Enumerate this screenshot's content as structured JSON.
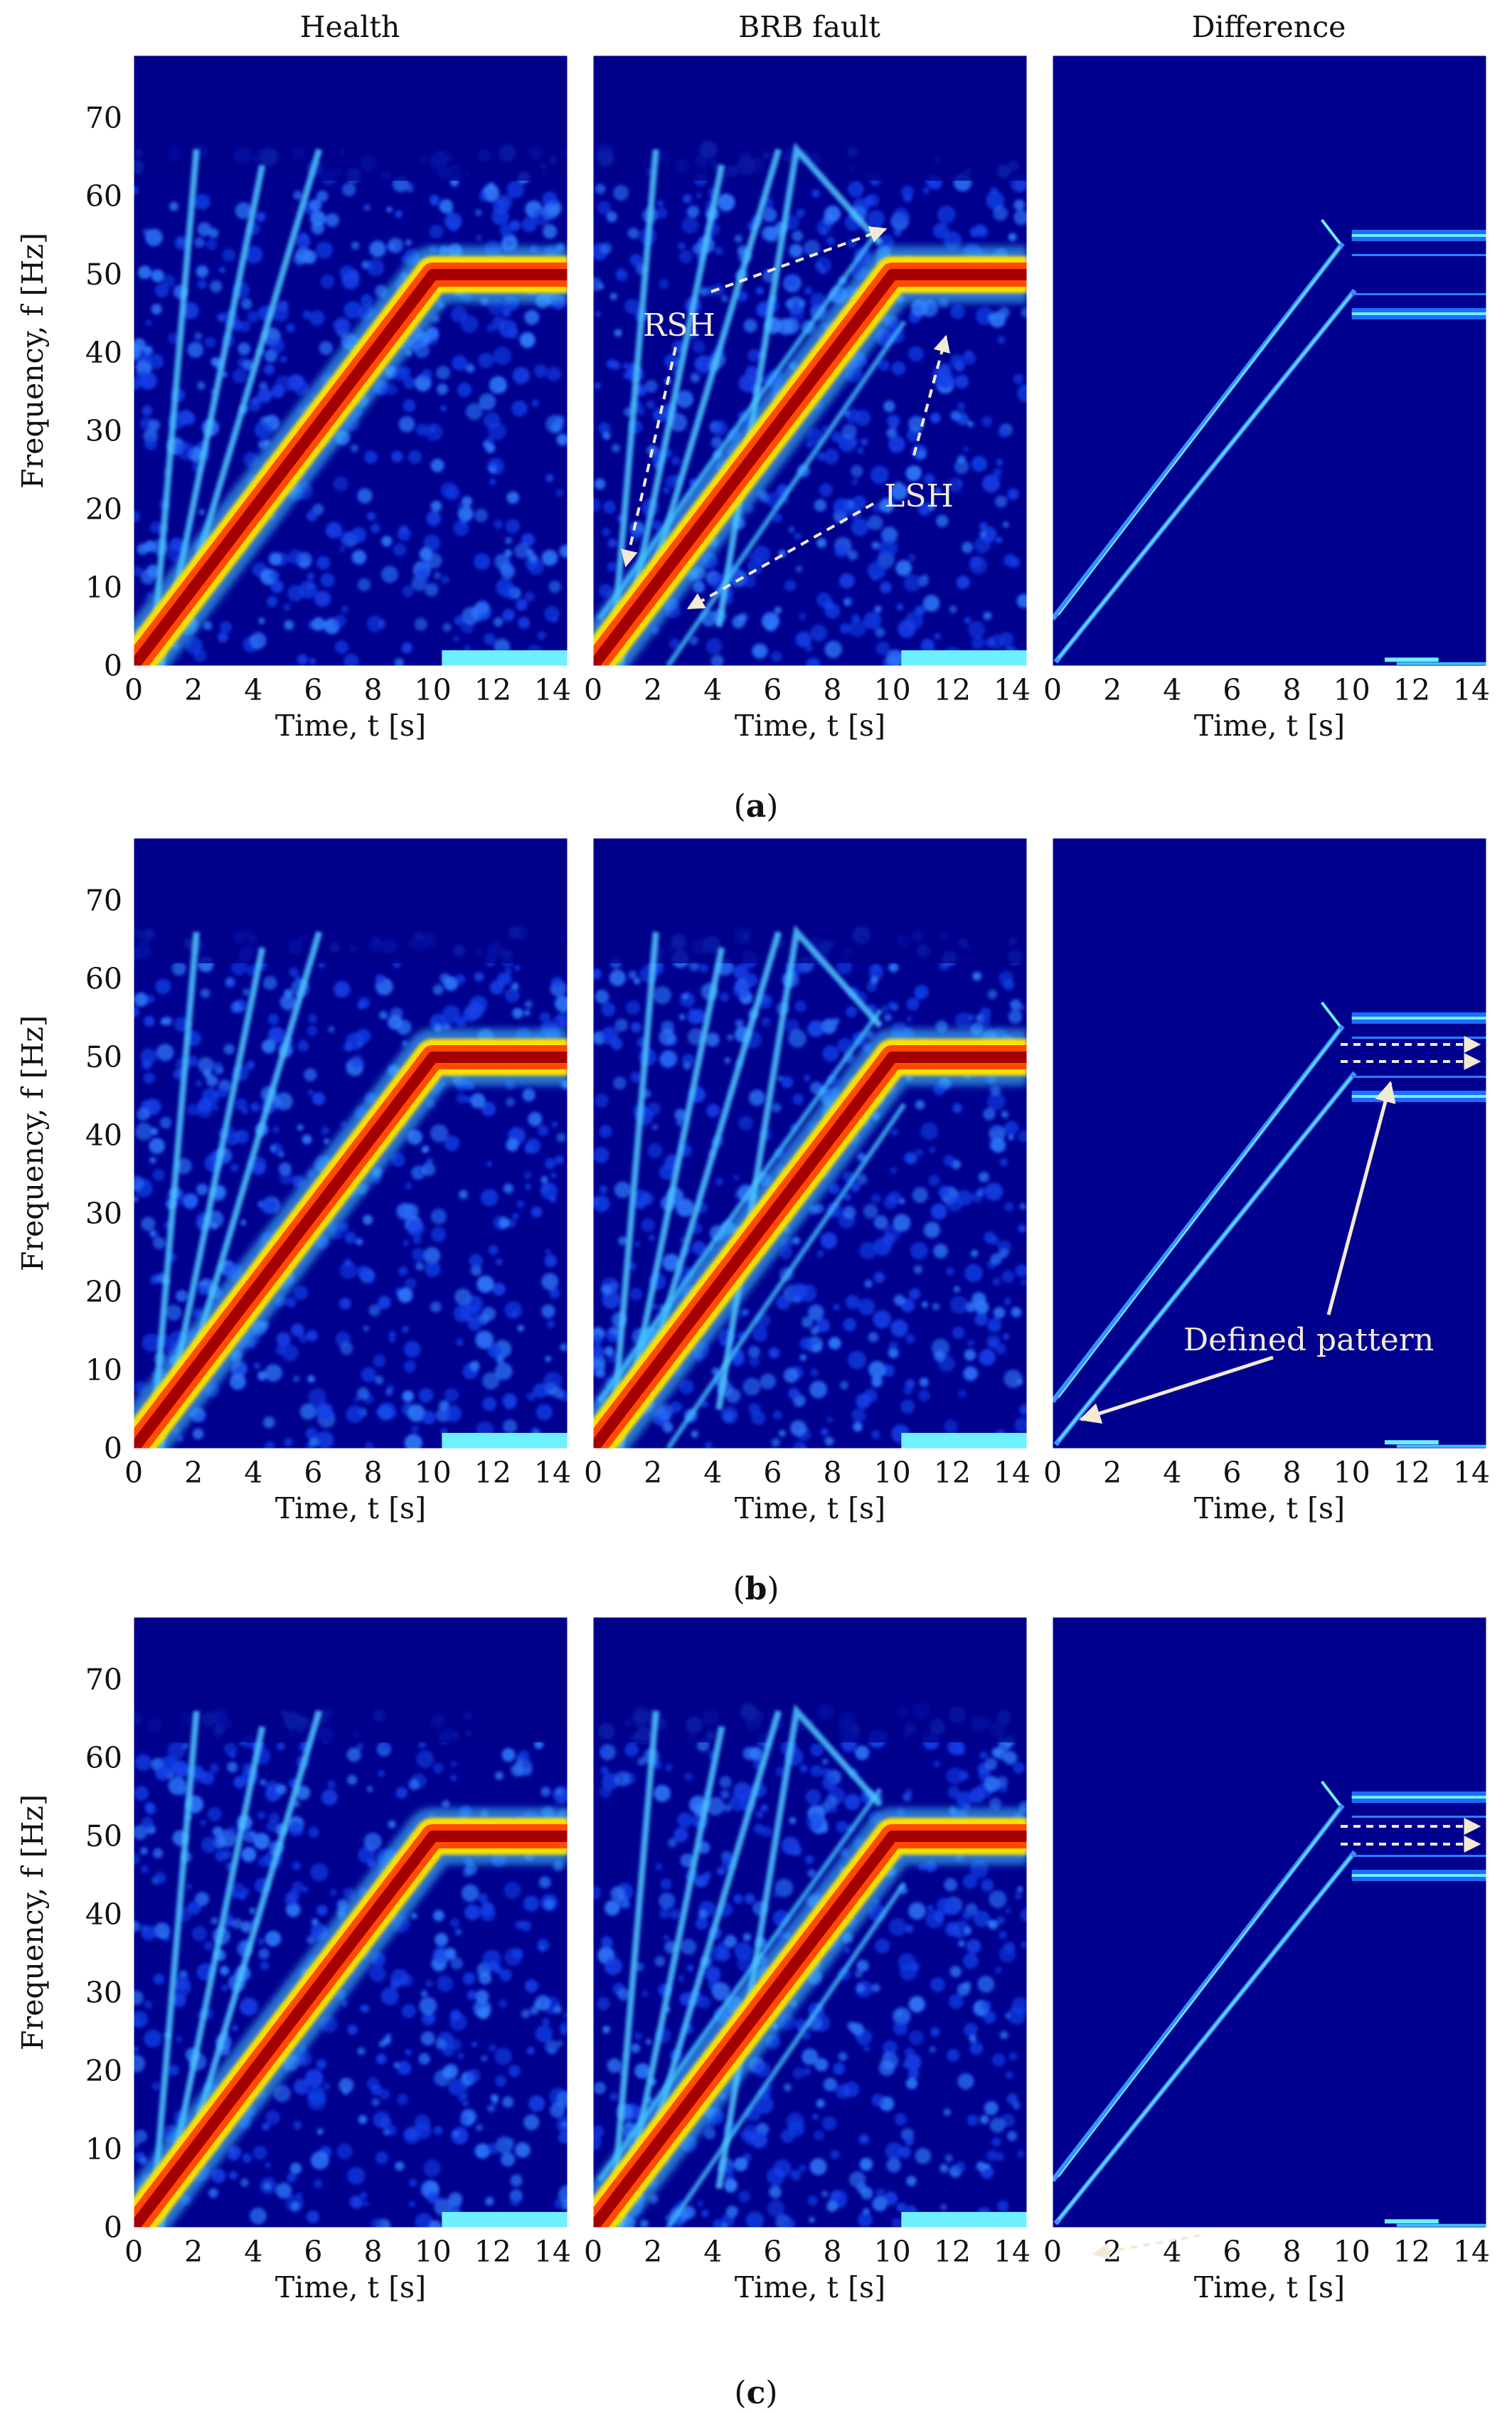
{
  "figure": {
    "column_titles": [
      "Health",
      "BRB fault",
      "Difference"
    ],
    "row_captions": [
      {
        "open": "(",
        "letter": "a",
        "close": ")"
      },
      {
        "open": "(",
        "letter": "b",
        "close": ")"
      },
      {
        "open": "(",
        "letter": "c",
        "close": ")"
      }
    ]
  },
  "colors": {
    "background_low": "#00008f",
    "colormap": [
      "#00008f",
      "#0022d8",
      "#2a6cf0",
      "#42c0ff",
      "#6ef0ff",
      "#ffe000",
      "#ff5a00",
      "#c00000",
      "#7a0000"
    ],
    "annotation": "#f3ead6"
  },
  "chart_data": [
    {
      "type": "heatmap",
      "row": "a",
      "title": "Health",
      "xlabel": "Time, t [s]",
      "ylabel": "Frequency, f [Hz]",
      "xlim": [
        0,
        14.5
      ],
      "ylim": [
        0,
        78
      ],
      "xticks": [
        0,
        2,
        4,
        6,
        8,
        10,
        12,
        14
      ],
      "yticks": [
        0,
        10,
        20,
        30,
        40,
        50,
        60,
        70
      ],
      "fundamental": [
        [
          0,
          0
        ],
        [
          10,
          50
        ],
        [
          14.5,
          50
        ]
      ],
      "variant": "health"
    },
    {
      "type": "heatmap",
      "row": "a",
      "title": "BRB fault",
      "xlabel": "Time, t [s]",
      "ylabel": "",
      "xlim": [
        0,
        14.5
      ],
      "ylim": [
        0,
        78
      ],
      "xticks": [
        0,
        2,
        4,
        6,
        8,
        10,
        12,
        14
      ],
      "yticks": [],
      "fundamental": [
        [
          0,
          0
        ],
        [
          10,
          50
        ],
        [
          14.5,
          50
        ]
      ],
      "variant": "fault",
      "annotations": [
        {
          "text": "RSH"
        },
        {
          "text": "LSH"
        }
      ]
    },
    {
      "type": "heatmap",
      "row": "a",
      "title": "Difference",
      "xlabel": "Time, t [s]",
      "ylabel": "",
      "xlim": [
        0,
        14.5
      ],
      "ylim": [
        0,
        78
      ],
      "xticks": [
        0,
        2,
        4,
        6,
        8,
        10,
        12,
        14
      ],
      "yticks": [],
      "sidebands": [
        55,
        45
      ],
      "variant": "diff"
    },
    {
      "type": "heatmap",
      "row": "b",
      "title": "Health",
      "xlabel": "Time, t [s]",
      "ylabel": "Frequency, f [Hz]",
      "xlim": [
        0,
        14.5
      ],
      "ylim": [
        0,
        78
      ],
      "xticks": [
        0,
        2,
        4,
        6,
        8,
        10,
        12,
        14
      ],
      "yticks": [
        0,
        10,
        20,
        30,
        40,
        50,
        60,
        70
      ],
      "fundamental": [
        [
          0,
          0
        ],
        [
          10,
          50
        ],
        [
          14.5,
          50
        ]
      ],
      "variant": "health"
    },
    {
      "type": "heatmap",
      "row": "b",
      "title": "BRB fault",
      "xlabel": "Time, t [s]",
      "ylabel": "",
      "xlim": [
        0,
        14.5
      ],
      "ylim": [
        0,
        78
      ],
      "xticks": [
        0,
        2,
        4,
        6,
        8,
        10,
        12,
        14
      ],
      "yticks": [],
      "fundamental": [
        [
          0,
          0
        ],
        [
          10,
          50
        ],
        [
          14.5,
          50
        ]
      ],
      "variant": "fault"
    },
    {
      "type": "heatmap",
      "row": "b",
      "title": "Difference",
      "xlabel": "Time, t [s]",
      "ylabel": "",
      "xlim": [
        0,
        14.5
      ],
      "ylim": [
        0,
        78
      ],
      "xticks": [
        0,
        2,
        4,
        6,
        8,
        10,
        12,
        14
      ],
      "yticks": [],
      "sidebands": [
        55,
        45
      ],
      "variant": "diff",
      "annotations": [
        {
          "text": "Defined pattern"
        }
      ]
    },
    {
      "type": "heatmap",
      "row": "c",
      "title": "Health",
      "xlabel": "Time, t [s]",
      "ylabel": "Frequency, f [Hz]",
      "xlim": [
        0,
        14.5
      ],
      "ylim": [
        0,
        78
      ],
      "xticks": [
        0,
        2,
        4,
        6,
        8,
        10,
        12,
        14
      ],
      "yticks": [
        0,
        10,
        20,
        30,
        40,
        50,
        60,
        70
      ],
      "fundamental": [
        [
          0,
          0
        ],
        [
          10,
          50
        ],
        [
          14.5,
          50
        ]
      ],
      "variant": "health"
    },
    {
      "type": "heatmap",
      "row": "c",
      "title": "BRB fault",
      "xlabel": "Time, t [s]",
      "ylabel": "",
      "xlim": [
        0,
        14.5
      ],
      "ylim": [
        0,
        78
      ],
      "xticks": [
        0,
        2,
        4,
        6,
        8,
        10,
        12,
        14
      ],
      "yticks": [],
      "fundamental": [
        [
          0,
          0
        ],
        [
          10,
          50
        ],
        [
          14.5,
          50
        ]
      ],
      "variant": "fault"
    },
    {
      "type": "heatmap",
      "row": "c",
      "title": "Difference",
      "xlabel": "Time, t [s]",
      "ylabel": "",
      "xlim": [
        0,
        14.5
      ],
      "ylim": [
        0,
        78
      ],
      "xticks": [
        0,
        2,
        4,
        6,
        8,
        10,
        12,
        14
      ],
      "yticks": [],
      "sidebands": [
        55,
        45
      ],
      "variant": "diff"
    }
  ]
}
